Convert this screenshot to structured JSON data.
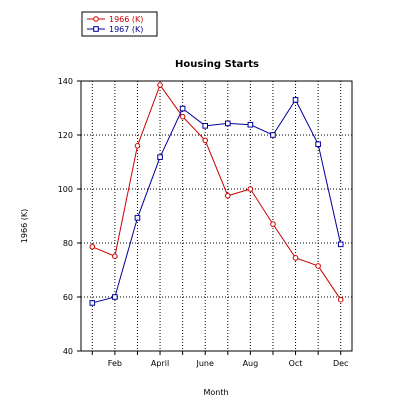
{
  "chart_data": {
    "type": "line",
    "title": "Housing Starts",
    "xlabel": "Month",
    "ylabel": "1966 (K)",
    "x": [
      1,
      2,
      3,
      4,
      5,
      6,
      7,
      8,
      9,
      10,
      11,
      12
    ],
    "xlim": [
      0.5,
      12.5
    ],
    "ylim": [
      40,
      140
    ],
    "xticks": [
      {
        "v": 2,
        "label": "Feb"
      },
      {
        "v": 4,
        "label": "April"
      },
      {
        "v": 6,
        "label": "June"
      },
      {
        "v": 8,
        "label": "Aug"
      },
      {
        "v": 10,
        "label": "Oct"
      },
      {
        "v": 12,
        "label": "Dec"
      }
    ],
    "yticks": [
      {
        "v": 40,
        "label": "40"
      },
      {
        "v": 60,
        "label": "60"
      },
      {
        "v": 80,
        "label": "80"
      },
      {
        "v": 100,
        "label": "100"
      },
      {
        "v": 120,
        "label": "120"
      },
      {
        "v": 140,
        "label": "140"
      }
    ],
    "grid": true,
    "legend_position": "top-left",
    "series": [
      {
        "name": "1966 (K)",
        "color": "#cc0000",
        "marker": "circle",
        "values": [
          78.6,
          75.1,
          116.0,
          138.5,
          126.8,
          118.0,
          97.5,
          100.0,
          87.0,
          74.5,
          71.5,
          59.0
        ]
      },
      {
        "name": "1967 (K)",
        "color": "#000099",
        "marker": "square",
        "values": [
          57.8,
          60.0,
          89.3,
          111.8,
          129.8,
          123.4,
          124.3,
          123.8,
          120.0,
          133.0,
          116.6,
          79.5
        ]
      }
    ]
  }
}
